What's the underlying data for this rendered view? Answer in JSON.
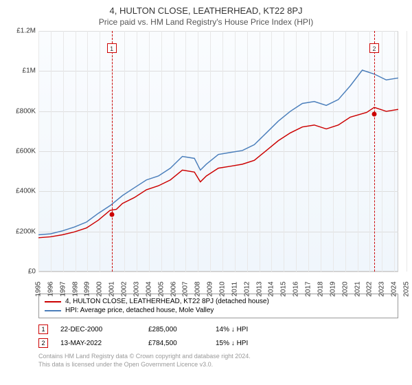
{
  "title": "4, HULTON CLOSE, LEATHERHEAD, KT22 8PJ",
  "subtitle": "Price paid vs. HM Land Registry's House Price Index (HPI)",
  "chart": {
    "type": "line",
    "background_color": "#f5f9fd",
    "grid_color": "#dddddd",
    "border_color": "#cccccc",
    "ylim": [
      0,
      1200000
    ],
    "ytick_step": 200000,
    "yticklabels": [
      "£0",
      "£200K",
      "£400K",
      "£600K",
      "£800K",
      "£1M",
      "£1.2M"
    ],
    "xlim": [
      1995,
      2025
    ],
    "xticks": [
      1995,
      1996,
      1997,
      1998,
      1999,
      2000,
      2001,
      2002,
      2003,
      2004,
      2005,
      2006,
      2007,
      2008,
      2009,
      2010,
      2011,
      2012,
      2013,
      2014,
      2015,
      2016,
      2017,
      2018,
      2019,
      2020,
      2021,
      2022,
      2023,
      2024,
      2025
    ],
    "label_fontsize": 10,
    "series": [
      {
        "name": "price_paid",
        "color": "#cc0000",
        "line_width": 1.5,
        "data": [
          [
            1995,
            145000
          ],
          [
            1996,
            150000
          ],
          [
            1997,
            160000
          ],
          [
            1998,
            175000
          ],
          [
            1999,
            195000
          ],
          [
            2000,
            235000
          ],
          [
            2000.97,
            285000
          ],
          [
            2001.5,
            290000
          ],
          [
            2002,
            320000
          ],
          [
            2003,
            350000
          ],
          [
            2004,
            390000
          ],
          [
            2005,
            410000
          ],
          [
            2006,
            440000
          ],
          [
            2007,
            490000
          ],
          [
            2008,
            480000
          ],
          [
            2008.5,
            430000
          ],
          [
            2009,
            460000
          ],
          [
            2010,
            500000
          ],
          [
            2011,
            510000
          ],
          [
            2012,
            520000
          ],
          [
            2013,
            540000
          ],
          [
            2014,
            590000
          ],
          [
            2015,
            640000
          ],
          [
            2016,
            680000
          ],
          [
            2017,
            710000
          ],
          [
            2018,
            720000
          ],
          [
            2019,
            700000
          ],
          [
            2020,
            720000
          ],
          [
            2021,
            760000
          ],
          [
            2022.37,
            784500
          ],
          [
            2023,
            810000
          ],
          [
            2024,
            790000
          ],
          [
            2025,
            800000
          ]
        ]
      },
      {
        "name": "hpi",
        "color": "#4a7ebb",
        "line_width": 1.5,
        "data": [
          [
            1995,
            160000
          ],
          [
            1996,
            165000
          ],
          [
            1997,
            180000
          ],
          [
            1998,
            200000
          ],
          [
            1999,
            225000
          ],
          [
            2000,
            270000
          ],
          [
            2001,
            310000
          ],
          [
            2002,
            360000
          ],
          [
            2003,
            400000
          ],
          [
            2004,
            440000
          ],
          [
            2005,
            460000
          ],
          [
            2006,
            500000
          ],
          [
            2007,
            560000
          ],
          [
            2008,
            550000
          ],
          [
            2008.5,
            490000
          ],
          [
            2009,
            520000
          ],
          [
            2010,
            570000
          ],
          [
            2011,
            580000
          ],
          [
            2012,
            590000
          ],
          [
            2013,
            620000
          ],
          [
            2014,
            680000
          ],
          [
            2015,
            740000
          ],
          [
            2016,
            790000
          ],
          [
            2017,
            830000
          ],
          [
            2018,
            840000
          ],
          [
            2019,
            820000
          ],
          [
            2020,
            850000
          ],
          [
            2021,
            920000
          ],
          [
            2022,
            1000000
          ],
          [
            2023,
            980000
          ],
          [
            2024,
            950000
          ],
          [
            2025,
            960000
          ]
        ]
      }
    ],
    "markers": [
      {
        "n": "1",
        "x": 2000.97,
        "y": 285000,
        "color": "#cc0000"
      },
      {
        "n": "2",
        "x": 2022.37,
        "y": 784500,
        "color": "#cc0000"
      }
    ]
  },
  "legend": {
    "items": [
      {
        "color": "#cc0000",
        "label": "4, HULTON CLOSE, LEATHERHEAD, KT22 8PJ (detached house)"
      },
      {
        "color": "#4a7ebb",
        "label": "HPI: Average price, detached house, Mole Valley"
      }
    ]
  },
  "table": {
    "marker_border": "#cc0000",
    "rows": [
      {
        "n": "1",
        "date": "22-DEC-2000",
        "price": "£285,000",
        "pct": "14% ↓ HPI"
      },
      {
        "n": "2",
        "date": "13-MAY-2022",
        "price": "£784,500",
        "pct": "15% ↓ HPI"
      }
    ]
  },
  "footer": {
    "line1": "Contains HM Land Registry data © Crown copyright and database right 2024.",
    "line2": "This data is licensed under the Open Government Licence v3.0."
  }
}
